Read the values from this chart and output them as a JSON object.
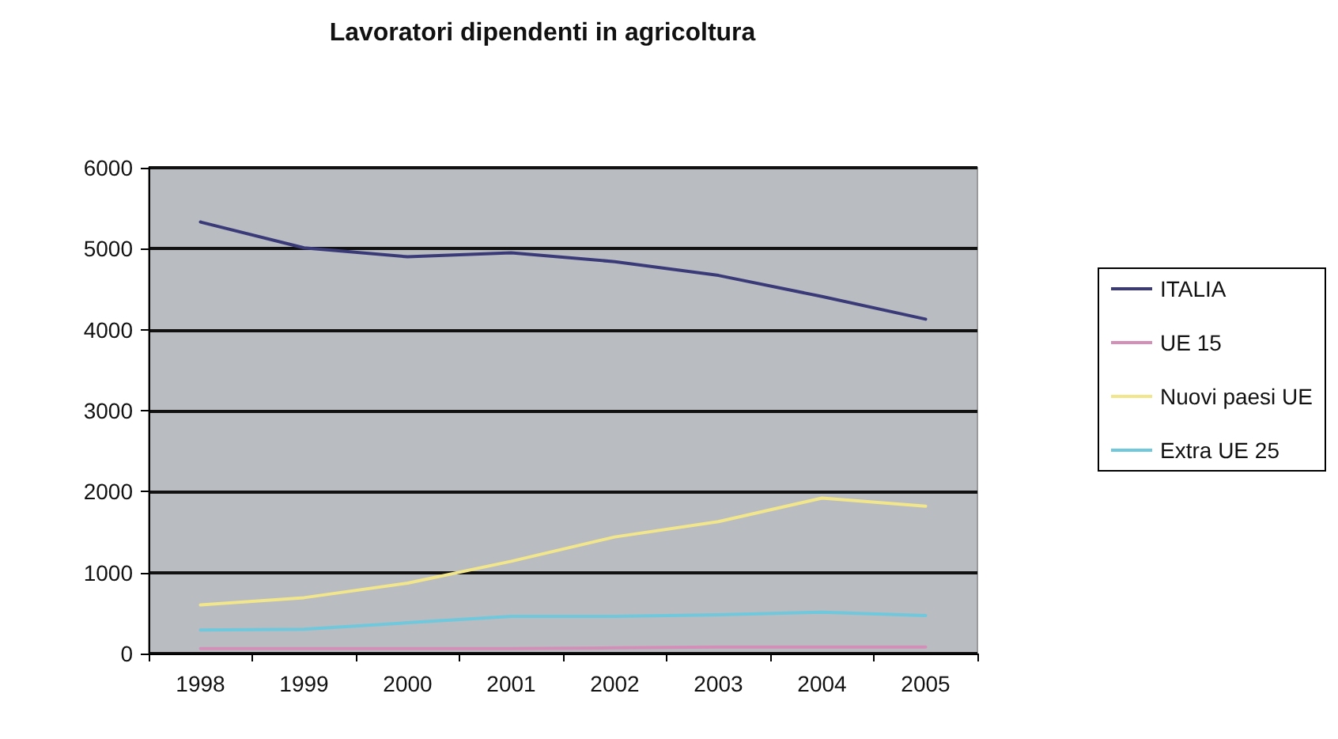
{
  "chart_data": {
    "type": "line",
    "title": "Lavoratori dipendenti in agricoltura",
    "categories": [
      "1998",
      "1999",
      "2000",
      "2001",
      "2002",
      "2003",
      "2004",
      "2005"
    ],
    "series": [
      {
        "name": "ITALIA",
        "color": "#3a3a78",
        "values": [
          5330,
          5010,
          4900,
          4950,
          4840,
          4670,
          4410,
          4130
        ]
      },
      {
        "name": "UE 15",
        "color": "#d48fb8",
        "values": [
          60,
          60,
          60,
          60,
          70,
          80,
          80,
          80
        ]
      },
      {
        "name": "Nuovi paesi UE",
        "color": "#f2e68c",
        "values": [
          600,
          690,
          870,
          1140,
          1440,
          1630,
          1920,
          1820
        ]
      },
      {
        "name": "Extra UE 25",
        "color": "#6fc8dc",
        "values": [
          290,
          300,
          380,
          460,
          460,
          480,
          510,
          470
        ]
      }
    ],
    "ylim": [
      0,
      6000
    ],
    "yticks": [
      0,
      1000,
      2000,
      3000,
      4000,
      5000,
      6000
    ],
    "grid": "y",
    "legend": "right",
    "marker": "none",
    "line_style": "solid"
  }
}
